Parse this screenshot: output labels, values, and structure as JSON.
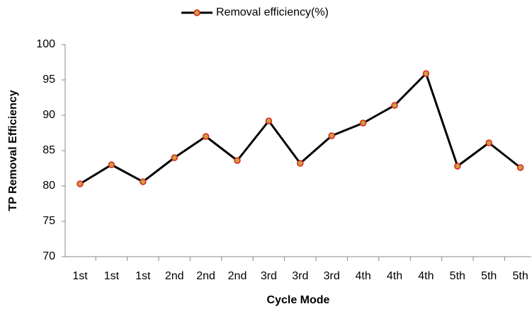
{
  "chart_data": {
    "type": "line",
    "legend_position": "top",
    "x_label": "Cycle Mode",
    "y_label": "TP  Removal Efficiency",
    "categories": [
      "1st",
      "1st",
      "1st",
      "2nd",
      "2nd",
      "2nd",
      "3rd",
      "3rd",
      "3rd",
      "4th",
      "4th",
      "4th",
      "5th",
      "5th",
      "5th"
    ],
    "series": [
      {
        "name": "Removal efficiency(%)",
        "color": "#000000",
        "marker_fill": "#c8a040",
        "marker_edge": "#e02020",
        "values": [
          80.3,
          83.0,
          80.6,
          84.0,
          87.0,
          83.6,
          89.2,
          83.2,
          87.1,
          88.9,
          91.4,
          95.9,
          82.8,
          86.1,
          82.6
        ]
      }
    ],
    "ylim": [
      70,
      100
    ],
    "yticks": [
      70,
      75,
      80,
      85,
      90,
      95,
      100
    ],
    "grid": false
  }
}
